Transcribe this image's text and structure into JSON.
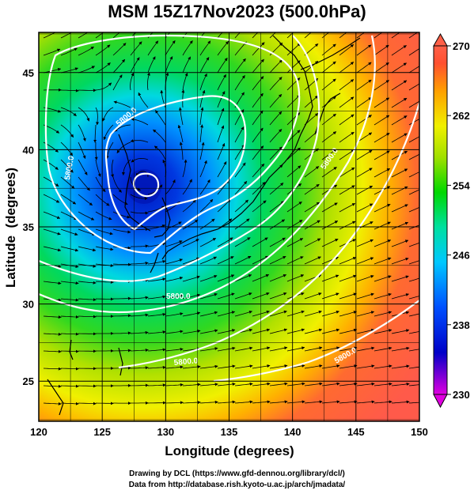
{
  "title": "MSM 15Z17Nov2023 (500.0hPa)",
  "map": {
    "xlabel": "Longitude (degrees)",
    "ylabel": "Latitude  (degrees)",
    "lon_ticks": [
      "120",
      "125",
      "130",
      "135",
      "140",
      "145",
      "150"
    ],
    "lat_ticks": [
      "25",
      "30",
      "35",
      "40",
      "45"
    ],
    "lon_range": [
      120,
      150
    ],
    "lat_range": [
      22.4,
      47.6
    ],
    "field": "temperature",
    "field_low_center_lonlat": [
      128.3,
      38.2
    ],
    "contour_label": "5800.0",
    "contour_labels_shown": [
      "5800.0",
      "5800.0",
      "5800.0",
      "5800.0",
      "5800.0",
      "5800.0"
    ],
    "grid": true,
    "overlays": [
      "coastlines",
      "wind-streamlines",
      "height-contours"
    ]
  },
  "colorbar": {
    "ticks": [
      "270",
      "262",
      "254",
      "246",
      "238",
      "230"
    ],
    "min": 230,
    "max": 270,
    "colors": [
      "#e000e0",
      "#0000c8",
      "#0050ff",
      "#00c8ff",
      "#00e0a0",
      "#00d800",
      "#a0e000",
      "#f0f000",
      "#ffa000",
      "#ff5030",
      "#ff6048"
    ]
  },
  "footer": {
    "line1": "Drawing by DCL (https://www.gfd-dennou.org/library/dcl/)",
    "line2": "Data from http://database.rish.kyoto-u.ac.jp/arch/jmadata/"
  }
}
